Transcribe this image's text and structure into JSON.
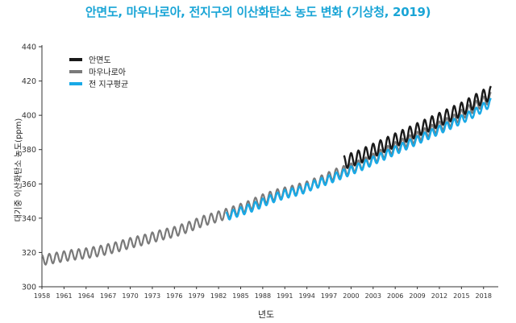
{
  "chart_data": {
    "type": "line",
    "title": "안면도, 마우나로아, 전지구의 이산화탄소 농도 변화 (기상청, 2019)",
    "xlabel": "년도",
    "ylabel": "대기중 이산화탄소 농도(ppm)",
    "xlim": [
      1958,
      2020
    ],
    "ylim": [
      300,
      440
    ],
    "y_ticks": [
      "300",
      "320",
      "340",
      "360",
      "380",
      "400",
      "420",
      "440"
    ],
    "x_ticks": [
      "1958",
      "1961",
      "1964",
      "1967",
      "1970",
      "1973",
      "1976",
      "1979",
      "1982",
      "1985",
      "1988",
      "1991",
      "1994",
      "1997",
      "2000",
      "2003",
      "2006",
      "2009",
      "2012",
      "2015",
      "2018"
    ],
    "grid": false,
    "legend_position": "top-left",
    "series": [
      {
        "name": "안면도",
        "color": "#1a1a1a",
        "x": [
          1999,
          2000,
          2001,
          2002,
          2003,
          2004,
          2005,
          2006,
          2007,
          2008,
          2009,
          2010,
          2011,
          2012,
          2013,
          2014,
          2015,
          2016,
          2017,
          2018,
          2019
        ],
        "y": [
          372.5,
          374,
          375.5,
          377.5,
          379.5,
          381.5,
          383.5,
          385.5,
          387.5,
          389.5,
          391.5,
          393.5,
          395.5,
          397.5,
          399.5,
          401.5,
          403.5,
          406,
          408.5,
          411,
          413
        ],
        "amplitude": 4
      },
      {
        "name": "마우나로아",
        "color": "#7a7a7a",
        "x": [
          1958,
          1960,
          1962,
          1964,
          1966,
          1968,
          1970,
          1972,
          1974,
          1976,
          1978,
          1980,
          1982,
          1984,
          1986,
          1988,
          1990,
          1992,
          1994,
          1996,
          1998,
          2000,
          2002,
          2004,
          2006,
          2008,
          2010,
          2012,
          2014,
          2016,
          2018,
          2019
        ],
        "y": [
          315.5,
          317,
          318.5,
          319.5,
          321,
          323,
          325.5,
          327.5,
          330,
          332,
          335,
          338.5,
          341,
          344,
          347,
          351,
          354,
          356,
          358.5,
          362,
          366,
          369,
          372.5,
          377,
          381.5,
          385.5,
          389.5,
          393.5,
          397.5,
          403,
          408,
          410.5
        ],
        "amplitude": 3
      },
      {
        "name": "전 지구평균",
        "color": "#19a9e6",
        "x": [
          1983,
          1985,
          1987,
          1989,
          1991,
          1993,
          1995,
          1997,
          1999,
          2001,
          2003,
          2005,
          2007,
          2009,
          2011,
          2013,
          2015,
          2017,
          2019
        ],
        "y": [
          341,
          344,
          347,
          351,
          354,
          356,
          359.5,
          362.5,
          366,
          369.5,
          373.5,
          377.5,
          381.5,
          385.5,
          389.5,
          393.5,
          397.5,
          402,
          407.5
        ],
        "amplitude": 2.5
      }
    ]
  }
}
